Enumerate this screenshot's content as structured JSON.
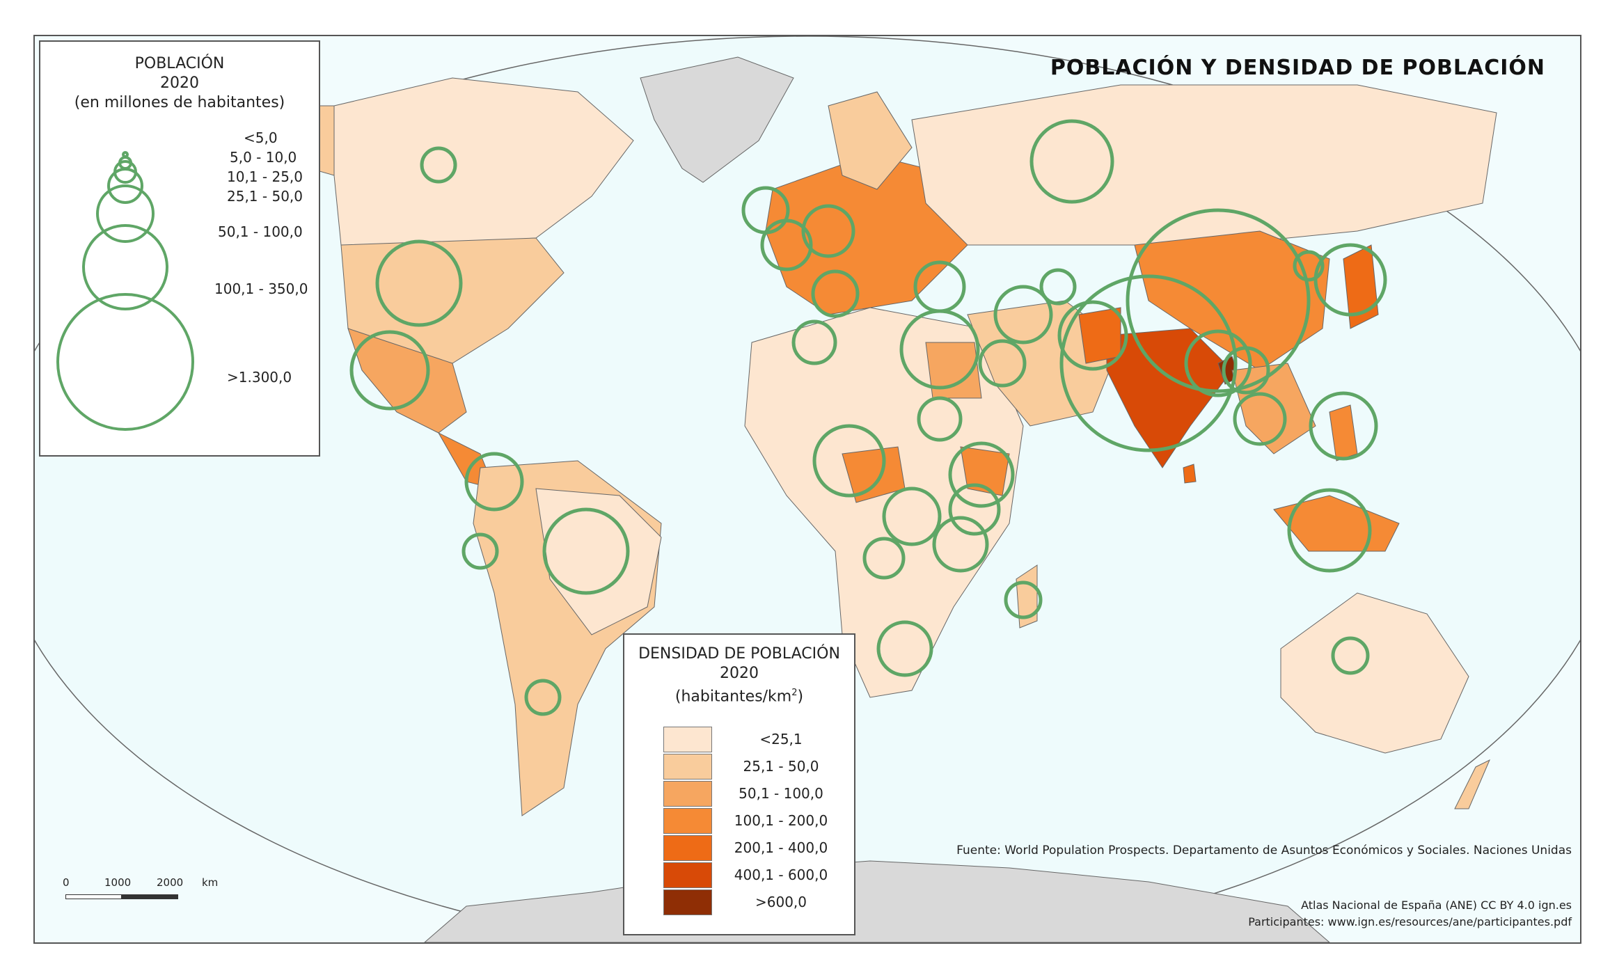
{
  "title": "POBLACIÓN Y DENSIDAD DE POBLACIÓN",
  "population_legend": {
    "title": "POBLACIÓN",
    "year": "2020",
    "unit": "(en millones de habitantes)",
    "classes": [
      "<5,0",
      "5,0 - 10,0",
      "10,1 - 25,0",
      "25,1 - 50,0",
      "50,1 - 100,0",
      "100,1 - 350,0",
      ">1.300,0"
    ]
  },
  "density_legend": {
    "title": "DENSIDAD DE POBLACIÓN",
    "year": "2020",
    "unit": "(habitantes/km",
    "unit_sup": "2",
    "unit_end": ")",
    "classes": [
      {
        "label": "<25,1",
        "color": "#fde6d0"
      },
      {
        "label": "25,1 - 50,0",
        "color": "#f9cc9c"
      },
      {
        "label": "50,1 - 100,0",
        "color": "#f6a660"
      },
      {
        "label": "100,1 - 200,0",
        "color": "#f58a35"
      },
      {
        "label": "200,1 - 400,0",
        "color": "#ee6b16"
      },
      {
        "label": "400,1 - 600,0",
        "color": "#d84a07"
      },
      {
        "label": ">600,0",
        "color": "#8f2e05"
      }
    ]
  },
  "scale_bar": {
    "labels": [
      "0",
      "1000",
      "2000",
      "km"
    ]
  },
  "source": "Fuente: World Population Prospects. Departamento de Asuntos Económicos y Sociales. Naciones Unidas",
  "credit": "Atlas Nacional de España (ANE) CC BY 4.0 ign.es",
  "participants": "Participantes: www.ign.es/resources/ane/participantes.pdf",
  "colors": {
    "ocean": "#f2fcfd",
    "circle": "#5fa666",
    "nodata": "#d9d9d9",
    "border": "#555555"
  }
}
